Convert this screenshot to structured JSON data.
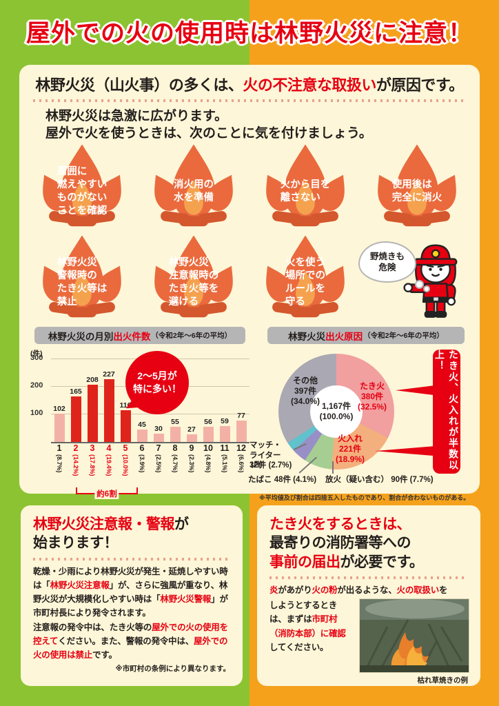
{
  "page": {
    "top_title": "屋外での火の使用時は林野火災に注意！",
    "colors": {
      "green": "#8cc332",
      "orange": "#f5a11c",
      "red": "#e60012",
      "cream": "#fdf6d8"
    }
  },
  "intro": {
    "heading_black1": "林野火災（山火事）の多くは、",
    "heading_red": "火の不注意な取扱い",
    "heading_black2": "が原因です。",
    "lead_line1": "林野火災は急激に広がります。",
    "lead_line2": "屋外で火を使うときは、次のことに気を付けましょう。"
  },
  "precautions": [
    "周囲に\n燃えやすい\nものがない\nことを確認",
    "消火用の\n水を準備",
    "火から目を\n離さない",
    "使用後は\n完全に消火",
    "林野火災\n警報時の\nたき火等は\n禁止",
    "林野火災\n注意報時の\nたき火等を\n避ける",
    "火を使う\n場所での\nルールを\n守る"
  ],
  "character": {
    "speech": "野焼きも\n危険"
  },
  "chart_data": [
    {
      "type": "bar",
      "title_black": "林野火災の月別",
      "title_red": "出火件数",
      "title_small": "（令和2年～6年の平均）",
      "unit_y": "(件)",
      "unit_x": "(月)",
      "categories": [
        "1",
        "2",
        "3",
        "4",
        "5",
        "6",
        "7",
        "8",
        "9",
        "10",
        "11",
        "12"
      ],
      "values": [
        102,
        165,
        208,
        227,
        116,
        45,
        30,
        55,
        27,
        56,
        59,
        77
      ],
      "percents": [
        "(8.7%)",
        "(14.2%)",
        "(17.8%)",
        "(19.4%)",
        "(10.0%)",
        "(3.9%)",
        "(2.5%)",
        "(4.7%)",
        "(2.3%)",
        "(4.8%)",
        "(5.1%)",
        "(6.6%)"
      ],
      "highlight_indices": [
        1,
        2,
        3,
        4
      ],
      "ylim": [
        0,
        300
      ],
      "yticks": [
        100,
        200,
        300
      ],
      "callout": "2～5月が\n特に多い！",
      "bracket_label": "約6割",
      "bar_color": "#df241c",
      "bar_color_light": "#f3b1a6"
    },
    {
      "type": "pie",
      "title_black": "林野火災",
      "title_red": "出火原因",
      "title_small": "（令和2年～6年の平均）",
      "center_line1": "1,167件",
      "center_line2": "(100.0%)",
      "slices": [
        {
          "label": "たき火",
          "count": "380件",
          "pct": "(32.5%)",
          "value": 32.5,
          "color": "#f19f9f"
        },
        {
          "label": "火入れ",
          "count": "221件",
          "pct": "(18.9%)",
          "value": 18.9,
          "color": "#f3af7d"
        },
        {
          "label": "放火（疑い含む）",
          "count": "90件",
          "pct": "(7.7%)",
          "value": 7.7,
          "color": "#a6ce93"
        },
        {
          "label": "たばこ",
          "count": "48件",
          "pct": "(4.1%)",
          "value": 4.1,
          "color": "#988fc6"
        },
        {
          "label": "マッチ・ライター",
          "count": "32件",
          "pct": "(2.7%)",
          "value": 2.7,
          "color": "#5fc2cc"
        },
        {
          "label": "その他",
          "count": "397件",
          "pct": "(34.0%)",
          "value": 34.0,
          "color": "#a9a8b3"
        }
      ],
      "banner": "たき火、火入れが半数以上！",
      "note": "※平均値及び割合は四捨五入したものであり、割合が合わないものがある。"
    }
  ],
  "alerts_panel": {
    "title_red": "林野火災注意報・警報",
    "title_black": "が",
    "title_line2": "始まります！",
    "body_segments": [
      {
        "t": "乾燥・少雨により林野火災が発生・延焼しやすい時は「"
      },
      {
        "t": "林野火災注意報",
        "red": true
      },
      {
        "t": "」が、さらに強風が重なり、林野火災が大規模化しやすい時は「"
      },
      {
        "t": "林野火災警報",
        "red": true
      },
      {
        "t": "」が市町村長により発令されます。\n注意報の発令中は、たき火等の"
      },
      {
        "t": "屋外での火の使用を控えて",
        "red": true
      },
      {
        "t": "ください。また、警報の発令中は、"
      },
      {
        "t": "屋外での火の使用は禁止",
        "red": true
      },
      {
        "t": "です。"
      }
    ],
    "note": "※市町村の条例により異なります。"
  },
  "notify_panel": {
    "title_line1": "たき火をするときは、",
    "title_line2": "最寄りの消防署等への",
    "title_line3_red": "事前の届出",
    "title_line3_black": "が必要です。",
    "body_line1_segments": [
      {
        "t": "炎",
        "red": true
      },
      {
        "t": "があがり"
      },
      {
        "t": "火の粉",
        "red": true
      },
      {
        "t": "が出るような、"
      },
      {
        "t": "火の取扱い",
        "red": true
      },
      {
        "t": "を"
      }
    ],
    "body_rest_segments": [
      {
        "t": "しようとするときは、まずは"
      },
      {
        "t": "市町村（消防本部）に確認",
        "red": true
      },
      {
        "t": "してください。"
      }
    ],
    "photo_caption": "枯れ草焼きの例"
  }
}
